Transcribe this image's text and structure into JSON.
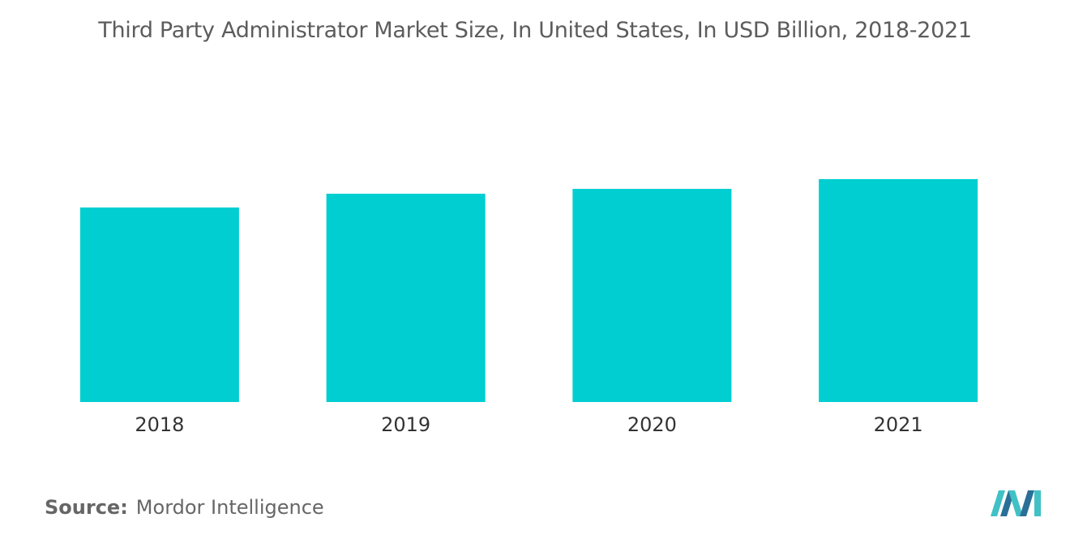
{
  "title": "Third Party Administrator Market Size, In United States, In USD Billion, 2018-2021",
  "source": {
    "label": "Source:",
    "value": "Mordor Intelligence"
  },
  "logo_icon": "mordor-intelligence-logo-icon",
  "colors": {
    "bar": "#00ced1",
    "title": "#5c5c5c",
    "tick": "#333333",
    "logo_dark": "#2a6f97",
    "logo_light": "#41c1c6"
  },
  "chart_data": {
    "type": "bar",
    "categories": [
      "2018",
      "2019",
      "2020",
      "2021"
    ],
    "values": [
      240,
      257,
      263,
      275
    ],
    "ylim": [
      0,
      400
    ],
    "grid": false,
    "legend": "none",
    "xlabel": "",
    "ylabel": ""
  }
}
